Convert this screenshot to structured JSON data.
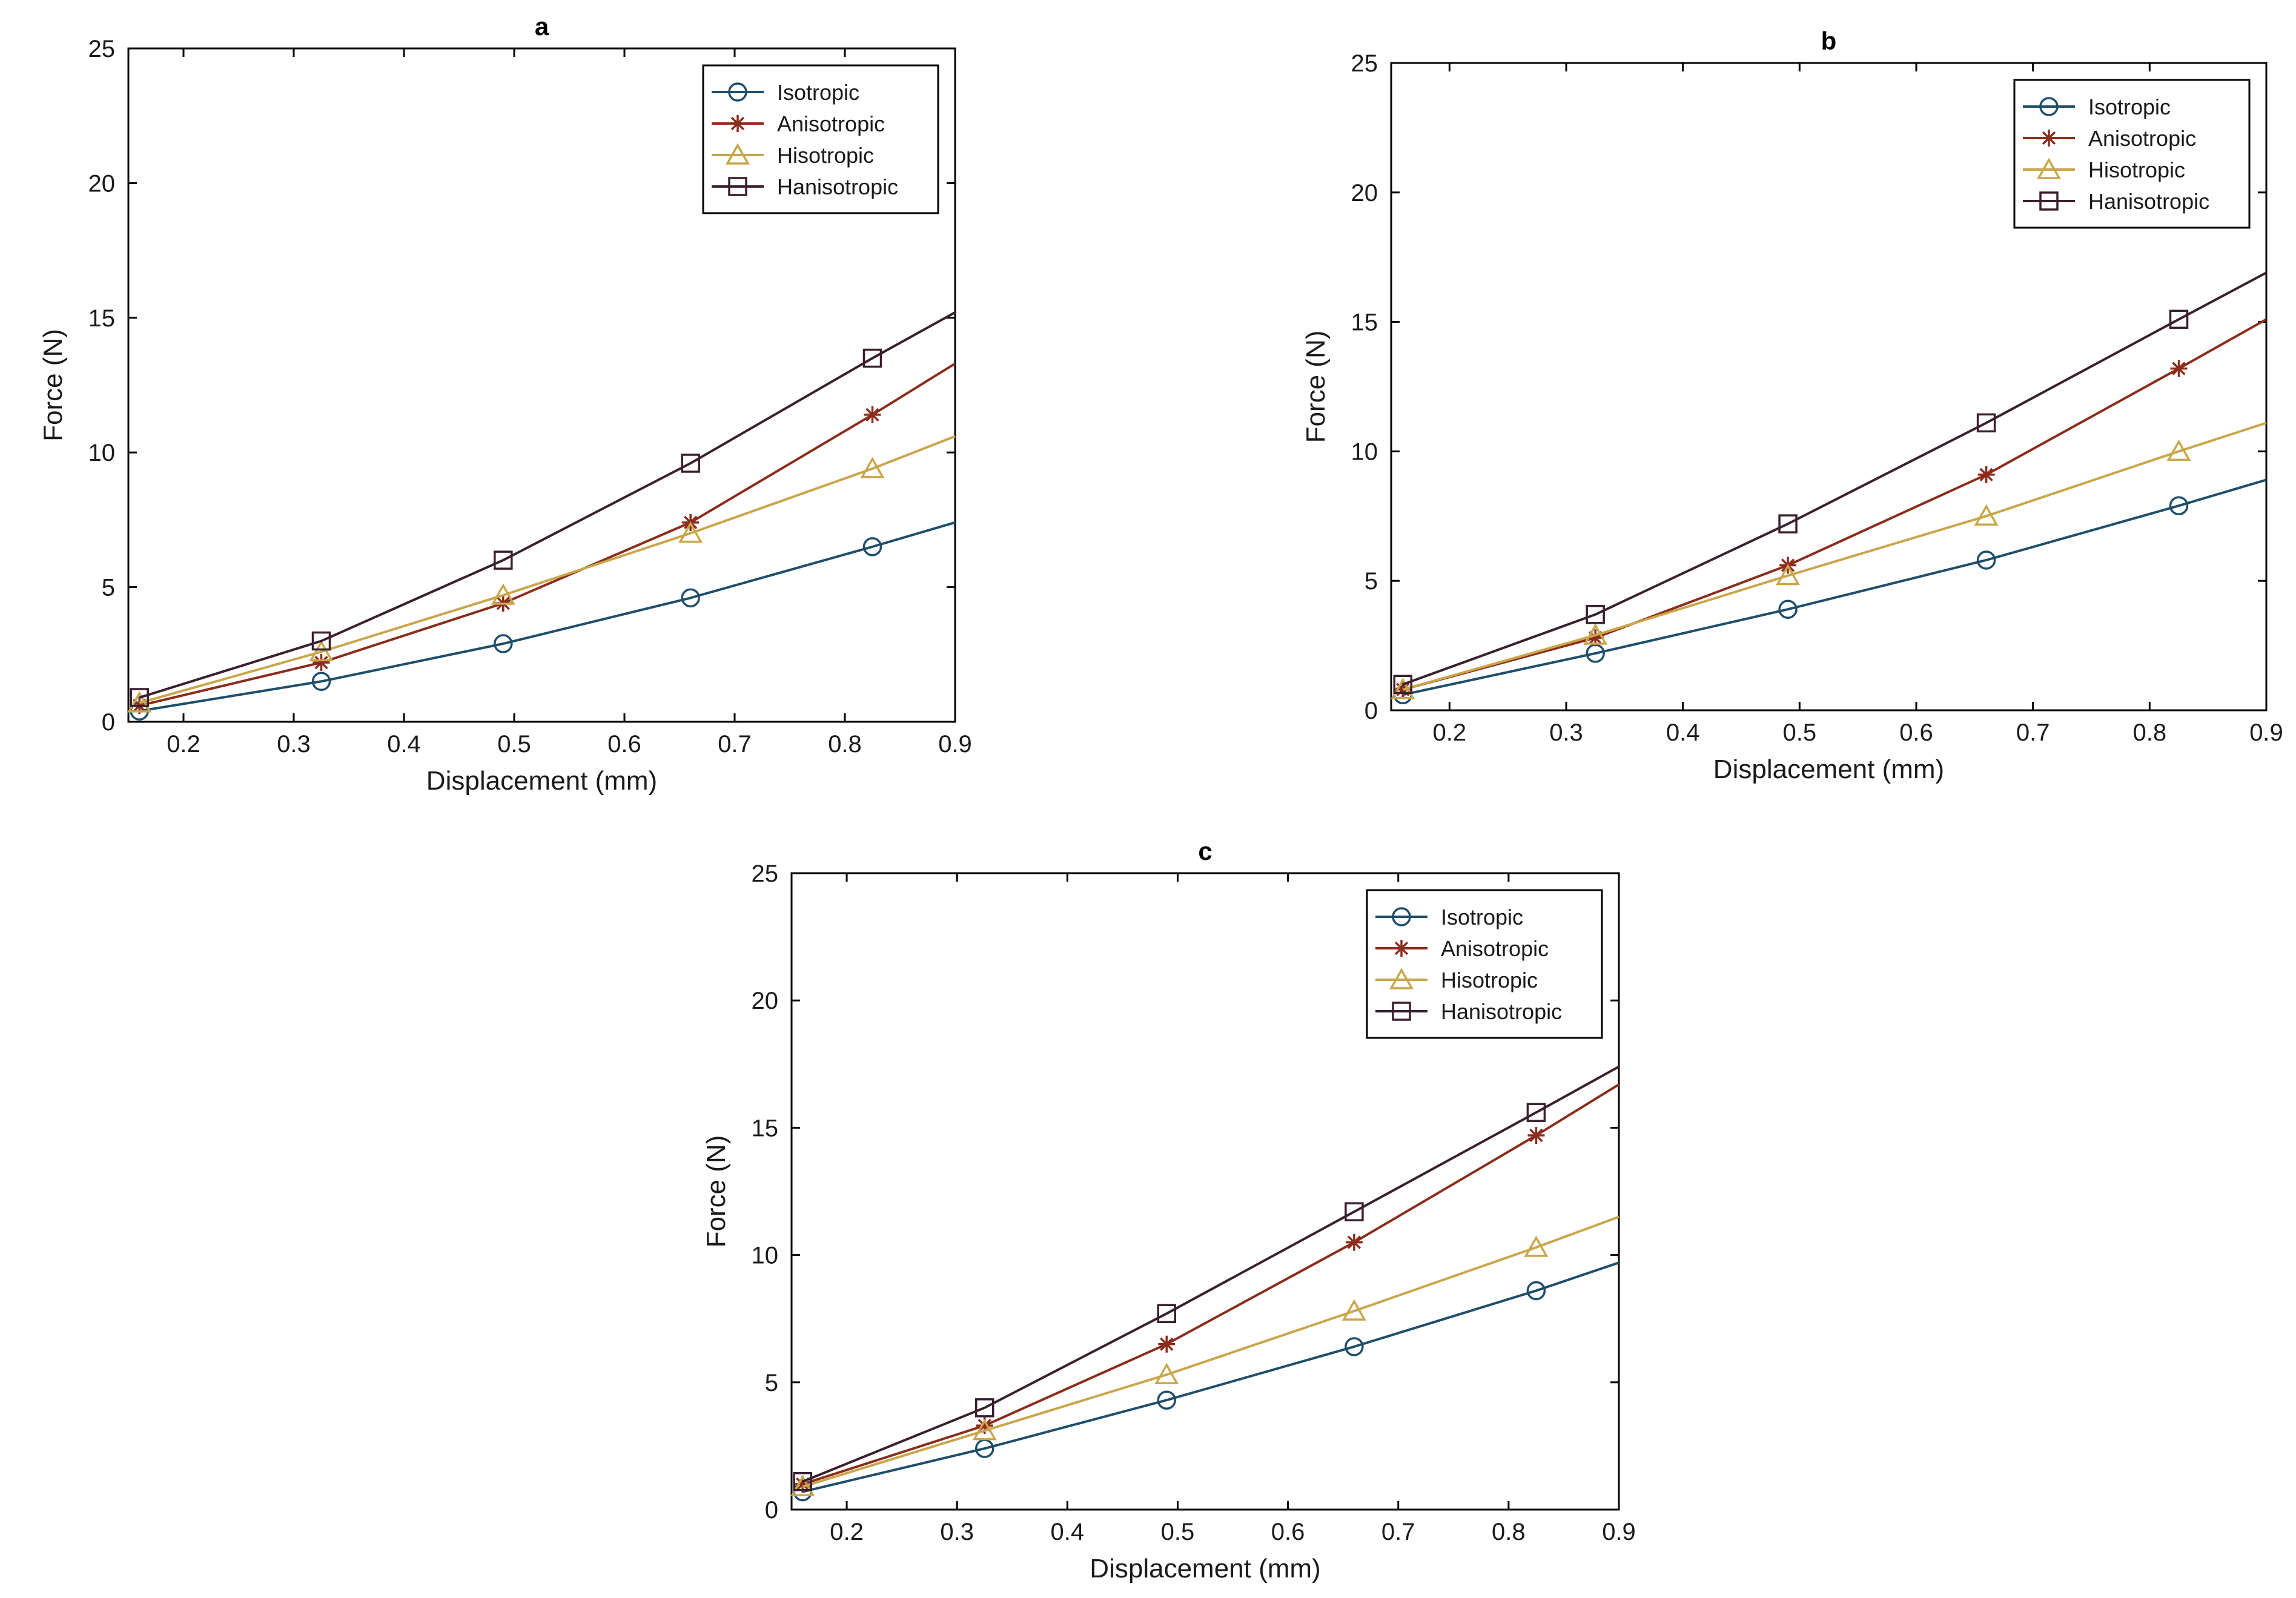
{
  "figure": {
    "panels": [
      "a",
      "b",
      "c"
    ]
  },
  "colors": {
    "Isotropic": "#1f4e6b",
    "Anisotropic": "#8b2c1c",
    "Hisotropic": "#c9a64a",
    "Hanisotropic": "#3a1f2e"
  },
  "markers": {
    "Isotropic": "circle-icon",
    "Anisotropic": "asterisk-icon",
    "Hisotropic": "triangle-icon",
    "Hanisotropic": "square-icon"
  },
  "chart_data": [
    {
      "type": "line",
      "title": "a",
      "xlabel": "Displacement (mm)",
      "ylabel": "Force (N)",
      "xlim": [
        0.15,
        0.9
      ],
      "ylim": [
        0,
        25
      ],
      "xticks": [
        0.2,
        0.3,
        0.4,
        0.5,
        0.6,
        0.7,
        0.8,
        0.9
      ],
      "yticks": [
        0,
        5,
        10,
        15,
        20,
        25
      ],
      "xtick_labels": [
        "0.2",
        "0.3",
        "0.4",
        "0.5",
        "0.6",
        "0.7",
        "0.8",
        "0.9"
      ],
      "ytick_labels": [
        "0",
        "5",
        "10",
        "15",
        "20",
        "25"
      ],
      "legend": "top-right",
      "x": [
        0.16,
        0.325,
        0.49,
        0.66,
        0.825,
        0.9
      ],
      "marker_count": 5,
      "series": [
        {
          "name": "Isotropic",
          "values": [
            0.4,
            1.5,
            2.9,
            4.6,
            6.5,
            7.4
          ]
        },
        {
          "name": "Anisotropic",
          "values": [
            0.6,
            2.2,
            4.4,
            7.4,
            11.4,
            13.3
          ]
        },
        {
          "name": "Hisotropic",
          "values": [
            0.7,
            2.6,
            4.7,
            7.0,
            9.4,
            10.6
          ]
        },
        {
          "name": "Hanisotropic",
          "values": [
            0.9,
            3.0,
            6.0,
            9.6,
            13.5,
            15.2
          ]
        }
      ]
    },
    {
      "type": "line",
      "title": "b",
      "xlabel": "Displacement (mm)",
      "ylabel": "Force (N)",
      "xlim": [
        0.15,
        0.9
      ],
      "ylim": [
        0,
        25
      ],
      "xticks": [
        0.2,
        0.3,
        0.4,
        0.5,
        0.6,
        0.7,
        0.8,
        0.9
      ],
      "yticks": [
        0,
        5,
        10,
        15,
        20,
        25
      ],
      "xtick_labels": [
        "0.2",
        "0.3",
        "0.4",
        "0.5",
        "0.6",
        "0.7",
        "0.8",
        "0.9"
      ],
      "ytick_labels": [
        "0",
        "5",
        "10",
        "15",
        "20",
        "25"
      ],
      "legend": "top-right",
      "x": [
        0.16,
        0.325,
        0.49,
        0.66,
        0.825,
        0.9
      ],
      "marker_count": 5,
      "series": [
        {
          "name": "Isotropic",
          "values": [
            0.6,
            2.2,
            3.9,
            5.8,
            7.9,
            8.9
          ]
        },
        {
          "name": "Anisotropic",
          "values": [
            0.8,
            2.8,
            5.6,
            9.1,
            13.2,
            15.1
          ]
        },
        {
          "name": "Hisotropic",
          "values": [
            0.8,
            2.9,
            5.2,
            7.5,
            10.0,
            11.1
          ]
        },
        {
          "name": "Hanisotropic",
          "values": [
            1.0,
            3.7,
            7.2,
            11.1,
            15.1,
            16.9
          ]
        }
      ]
    },
    {
      "type": "line",
      "title": "c",
      "xlabel": "Displacement (mm)",
      "ylabel": "Force (N)",
      "xlim": [
        0.15,
        0.9
      ],
      "ylim": [
        0,
        25
      ],
      "xticks": [
        0.2,
        0.3,
        0.4,
        0.5,
        0.6,
        0.7,
        0.8,
        0.9
      ],
      "yticks": [
        0,
        5,
        10,
        15,
        20,
        25
      ],
      "xtick_labels": [
        "0.2",
        "0.3",
        "0.4",
        "0.5",
        "0.6",
        "0.7",
        "0.8",
        "0.9"
      ],
      "ytick_labels": [
        "0",
        "5",
        "10",
        "15",
        "20",
        "25"
      ],
      "legend": "top-right",
      "x": [
        0.16,
        0.325,
        0.49,
        0.66,
        0.825,
        0.9
      ],
      "marker_count": 5,
      "series": [
        {
          "name": "Isotropic",
          "values": [
            0.7,
            2.4,
            4.3,
            6.4,
            8.6,
            9.7
          ]
        },
        {
          "name": "Anisotropic",
          "values": [
            1.0,
            3.3,
            6.5,
            10.5,
            14.7,
            16.7
          ]
        },
        {
          "name": "Hisotropic",
          "values": [
            0.9,
            3.1,
            5.3,
            7.8,
            10.3,
            11.5
          ]
        },
        {
          "name": "Hanisotropic",
          "values": [
            1.1,
            4.0,
            7.7,
            11.7,
            15.6,
            17.4
          ]
        }
      ]
    }
  ]
}
